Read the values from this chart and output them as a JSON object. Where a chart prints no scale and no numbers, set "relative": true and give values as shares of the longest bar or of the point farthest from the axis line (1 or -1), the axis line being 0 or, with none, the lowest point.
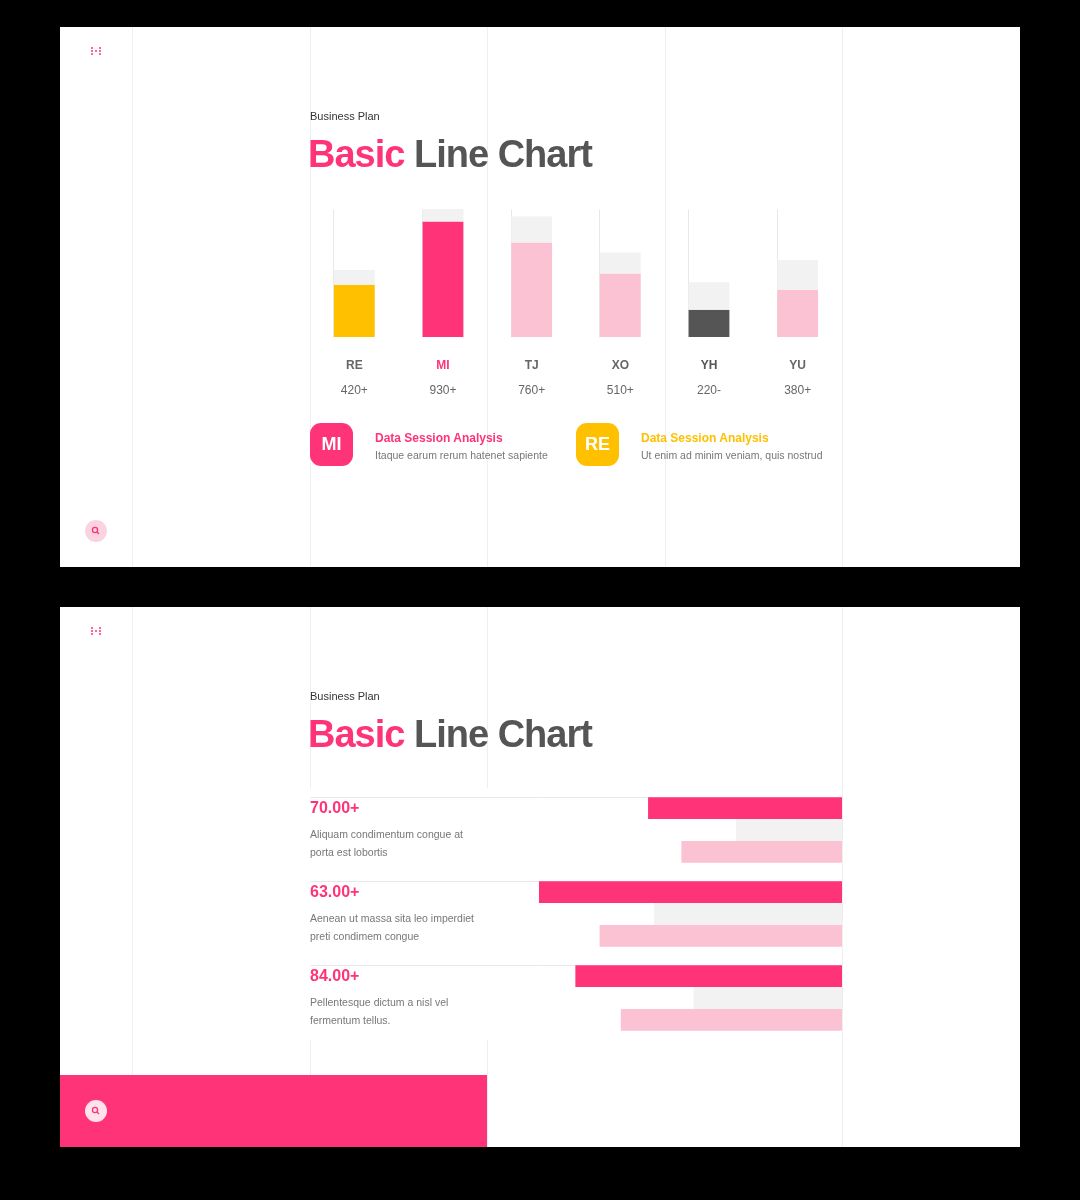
{
  "chart_data": [
    {
      "type": "bar",
      "subtitle": "Business Plan",
      "title": "Basic Line Chart",
      "categories": [
        "RE",
        "MI",
        "TJ",
        "XO",
        "YH",
        "YU"
      ],
      "ylim": [
        0,
        1030
      ],
      "tick_labels": "x",
      "stacked": true,
      "grid": "x",
      "series": [
        {
          "colors": [
            "#ffc000",
            "#ff3377",
            "#fbc2d4",
            "#fbc2d4",
            "#555555",
            "#fbc2d4"
          ],
          "values": [
            420,
            930,
            760,
            510,
            220,
            380
          ],
          "value_labels": [
            "420+",
            "930+",
            "760+",
            "510+",
            "220-",
            "380+"
          ]
        },
        {
          "color": "#f2f2f2",
          "values": [
            120,
            100,
            210,
            170,
            220,
            240
          ]
        }
      ],
      "annotations": [
        "MI",
        "Data Session Analysis",
        "Itaque earum rerum hatenet sapiente",
        "RE",
        "Data Session Analysis",
        "Ut enim ad minim veniam, quis nostrud"
      ]
    },
    {
      "type": "bar",
      "orientation": "horizontal",
      "subtitle": "Business Plan",
      "title": "Basic Line Chart",
      "categories": [
        "70.00+",
        "63.00+",
        "84.00+"
      ],
      "relative": true,
      "grid": "y",
      "series": [
        {
          "color": "#ff3377",
          "values": [
            0.64,
            1,
            0.88
          ]
        },
        {
          "color": "#f2f2f2",
          "values": [
            0.35,
            0.62,
            0.49
          ]
        },
        {
          "color": "#fbc2d4",
          "values": [
            0.53,
            0.8,
            0.73
          ]
        }
      ],
      "annotations": [
        "Aliquam condimentum congue at porta est lobortis",
        "Aenean ut massa sita leo imperdiet preti condimem congue",
        "Pellentesque dictum a nisl vel fermentum tellus."
      ]
    }
  ]
}
